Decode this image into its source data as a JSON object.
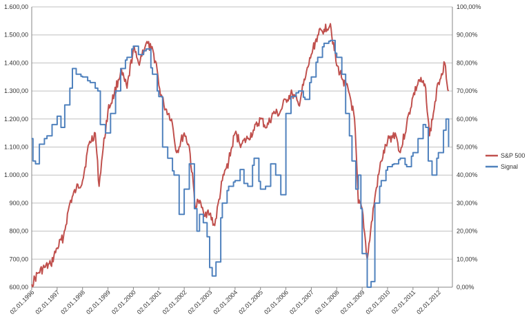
{
  "chart_data": {
    "type": "line",
    "title": "",
    "xlabel": "",
    "ylabel": "",
    "grid": true,
    "legend_position": "right",
    "x_ticks": [
      "02.01.1996",
      "02.01.1997",
      "02.01.1998",
      "02.01.1999",
      "02.01.2000",
      "02.01.2001",
      "02.01.2002",
      "02.01.2003",
      "02.01.2004",
      "02.01.2005",
      "02.01.2006",
      "02.01.2007",
      "02.01.2008",
      "02.01.2009",
      "02.01.2010",
      "02.01.2011",
      "02.01.2012"
    ],
    "y_left": {
      "ticks": [
        "600,00",
        "700,00",
        "800,00",
        "900,00",
        "1.000,00",
        "1.100,00",
        "1.200,00",
        "1.300,00",
        "1.400,00",
        "1.500,00",
        "1.600,00"
      ],
      "range": [
        600,
        1600
      ]
    },
    "y_right": {
      "ticks": [
        "0,00%",
        "10,00%",
        "20,00%",
        "30,00%",
        "40,00%",
        "50,00%",
        "60,00%",
        "70,00%",
        "80,00%",
        "90,00%",
        "100,00%"
      ],
      "range": [
        0,
        100
      ]
    },
    "series": [
      {
        "name": "S&P 500",
        "axis": "left",
        "color": "#c0504d",
        "x": [
          1996.0,
          1996.25,
          1996.5,
          1996.75,
          1997.0,
          1997.25,
          1997.5,
          1997.75,
          1998.0,
          1998.25,
          1998.5,
          1998.65,
          1998.75,
          1999.0,
          1999.25,
          1999.5,
          1999.75,
          2000.0,
          2000.2,
          2000.5,
          2000.7,
          2000.9,
          2001.0,
          2001.2,
          2001.5,
          2001.7,
          2002.0,
          2002.2,
          2002.45,
          2002.55,
          2002.75,
          2003.0,
          2003.2,
          2003.5,
          2003.75,
          2004.0,
          2004.25,
          2004.5,
          2004.75,
          2005.0,
          2005.25,
          2005.5,
          2005.75,
          2006.0,
          2006.25,
          2006.5,
          2006.75,
          2007.0,
          2007.25,
          2007.5,
          2007.75,
          2008.0,
          2008.25,
          2008.5,
          2008.7,
          2008.85,
          2009.0,
          2009.2,
          2009.5,
          2009.75,
          2010.0,
          2010.3,
          2010.5,
          2010.75,
          2011.0,
          2011.25,
          2011.5,
          2011.65,
          2011.8,
          2012.0,
          2012.25,
          2012.4
        ],
        "values": [
          610,
          650,
          670,
          680,
          740,
          780,
          900,
          950,
          980,
          1110,
          1150,
          960,
          1050,
          1230,
          1290,
          1370,
          1310,
          1450,
          1400,
          1470,
          1450,
          1400,
          1320,
          1250,
          1200,
          1080,
          1150,
          1100,
          880,
          910,
          870,
          860,
          820,
          980,
          1050,
          1150,
          1110,
          1130,
          1160,
          1200,
          1170,
          1220,
          1220,
          1270,
          1290,
          1250,
          1340,
          1430,
          1500,
          1520,
          1540,
          1390,
          1340,
          1290,
          1200,
          900,
          880,
          700,
          920,
          1050,
          1120,
          1150,
          1080,
          1180,
          1280,
          1340,
          1310,
          1140,
          1220,
          1330,
          1400,
          1300
        ]
      },
      {
        "name": "Signal",
        "axis": "right",
        "color": "#4f81bd",
        "x": [
          1996.0,
          1996.05,
          1996.15,
          1996.3,
          1996.6,
          1996.8,
          1997.0,
          1997.15,
          1997.3,
          1997.5,
          1997.6,
          1997.75,
          1998.0,
          1998.3,
          1998.6,
          1998.7,
          1998.9,
          1999.1,
          1999.3,
          1999.5,
          1999.75,
          2000.0,
          2000.2,
          2000.5,
          2000.75,
          2001.0,
          2001.15,
          2001.35,
          2001.6,
          2001.8,
          2002.0,
          2002.2,
          2002.4,
          2002.5,
          2002.6,
          2002.75,
          2002.9,
          2003.0,
          2003.1,
          2003.25,
          2003.5,
          2003.75,
          2004.0,
          2004.2,
          2004.35,
          2004.5,
          2004.75,
          2005.0,
          2005.2,
          2005.4,
          2005.6,
          2005.8,
          2006.0,
          2006.2,
          2006.5,
          2006.75,
          2007.0,
          2007.25,
          2007.5,
          2007.75,
          2008.0,
          2008.2,
          2008.35,
          2008.5,
          2008.6,
          2008.75,
          2008.85,
          2008.95,
          2009.0,
          2009.2,
          2009.35,
          2009.5,
          2009.75,
          2010.0,
          2010.25,
          2010.5,
          2010.75,
          2011.0,
          2011.2,
          2011.4,
          2011.5,
          2011.6,
          2011.75,
          2012.0,
          2012.2,
          2012.3,
          2012.4
        ],
        "values": [
          53,
          45,
          44,
          51,
          54,
          58,
          61,
          57,
          65,
          71,
          78,
          76,
          75,
          73,
          70,
          58,
          55,
          62,
          70,
          78,
          82,
          86,
          83,
          85,
          76,
          68,
          50,
          46,
          40,
          26,
          35,
          44,
          28,
          20,
          26,
          23,
          18,
          7,
          4,
          9,
          30,
          36,
          38,
          42,
          37,
          36,
          46,
          35,
          36,
          44,
          40,
          33,
          62,
          68,
          70,
          67,
          75,
          82,
          87,
          88,
          82,
          76,
          62,
          54,
          45,
          35,
          40,
          28,
          12,
          0,
          2,
          30,
          38,
          43,
          44,
          46,
          43,
          48,
          53,
          58,
          57,
          45,
          40,
          48,
          56,
          60,
          50
        ]
      }
    ]
  }
}
